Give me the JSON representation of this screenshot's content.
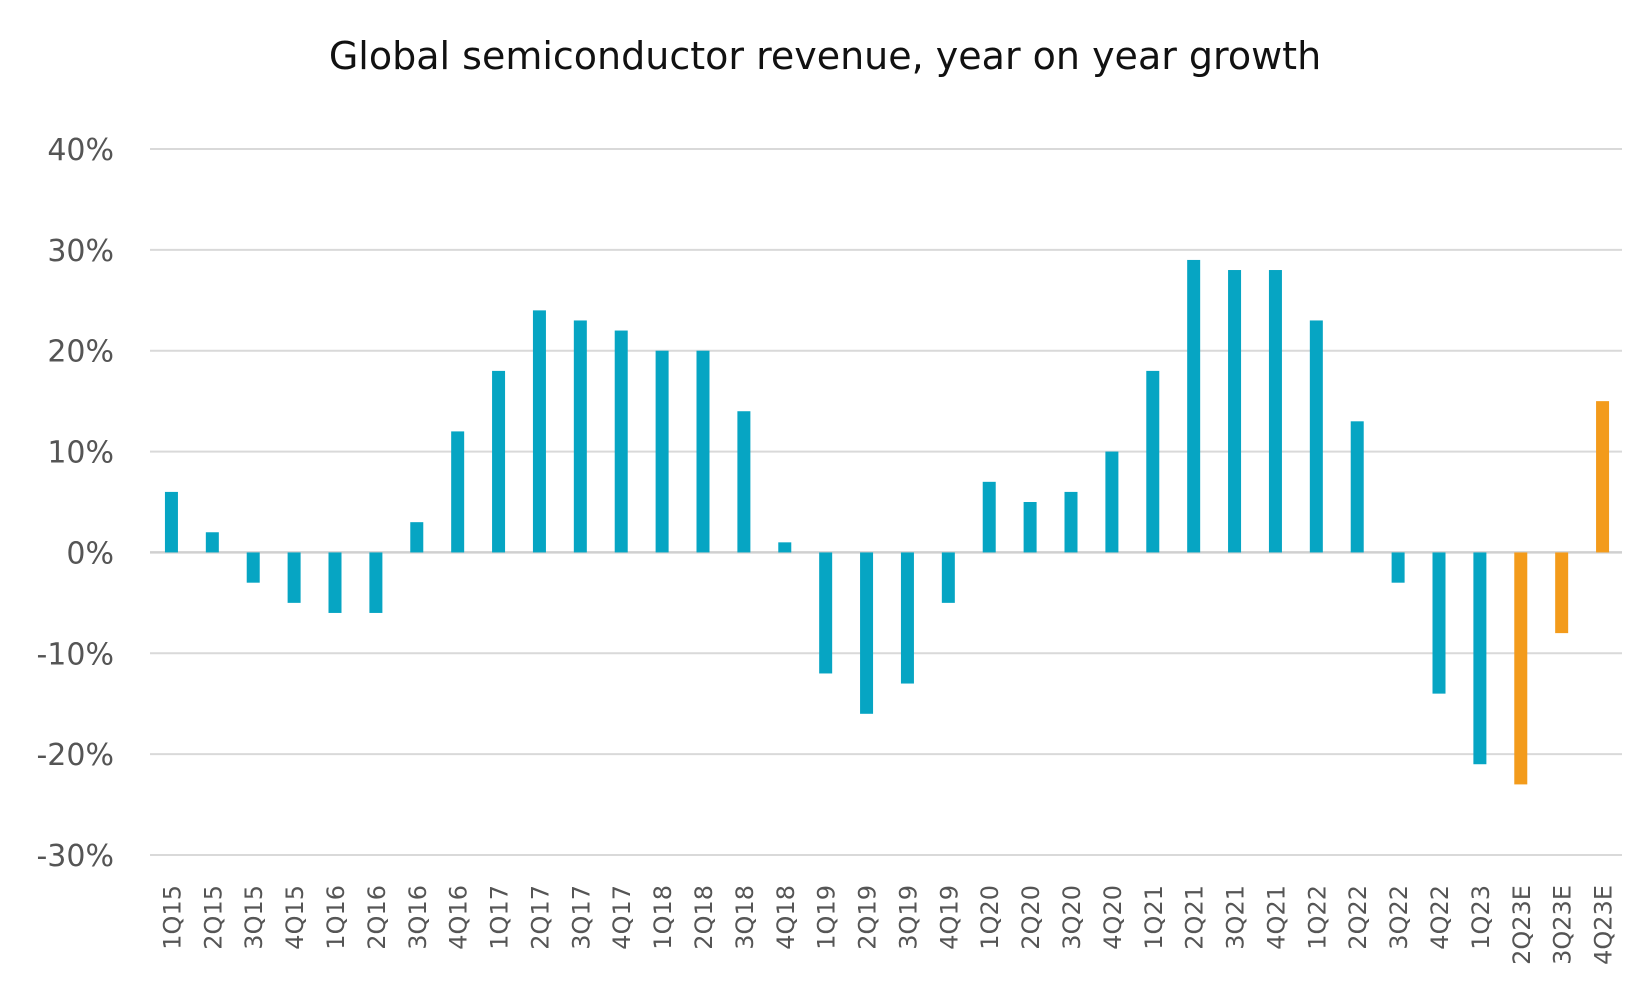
{
  "chart_data": {
    "type": "bar",
    "title": "Global semiconductor revenue, year on year growth",
    "xlabel": "",
    "ylabel": "",
    "ylim": [
      -30,
      40
    ],
    "yticks": [
      40,
      30,
      20,
      10,
      0,
      -10,
      -20,
      -30
    ],
    "ytick_labels": [
      "40%",
      "30%",
      "20%",
      "10%",
      "0%",
      "-10%",
      "-20%",
      "-30%"
    ],
    "grid": true,
    "legend": "none",
    "categories": [
      "1Q15",
      "2Q15",
      "3Q15",
      "4Q15",
      "1Q16",
      "2Q16",
      "3Q16",
      "4Q16",
      "1Q17",
      "2Q17",
      "3Q17",
      "4Q17",
      "1Q18",
      "2Q18",
      "3Q18",
      "4Q18",
      "1Q19",
      "2Q19",
      "3Q19",
      "4Q19",
      "1Q20",
      "2Q20",
      "3Q20",
      "4Q20",
      "1Q21",
      "2Q21",
      "3Q21",
      "4Q21",
      "1Q22",
      "2Q22",
      "3Q22",
      "4Q22",
      "1Q23",
      "2Q23E",
      "3Q23E",
      "4Q23E"
    ],
    "values": [
      6,
      2,
      -3,
      -5,
      -6,
      -6,
      3,
      12,
      18,
      24,
      23,
      22,
      20,
      20,
      14,
      1,
      -12,
      -16,
      -13,
      -5,
      7,
      5,
      6,
      10,
      18,
      29,
      28,
      28,
      23,
      13,
      -3,
      -14,
      -21,
      -23,
      -8,
      15
    ],
    "bar_kind": [
      "actual",
      "actual",
      "actual",
      "actual",
      "actual",
      "actual",
      "actual",
      "actual",
      "actual",
      "actual",
      "actual",
      "actual",
      "actual",
      "actual",
      "actual",
      "actual",
      "actual",
      "actual",
      "actual",
      "actual",
      "actual",
      "actual",
      "actual",
      "actual",
      "actual",
      "actual",
      "actual",
      "actual",
      "actual",
      "actual",
      "actual",
      "actual",
      "actual",
      "estimate",
      "estimate",
      "estimate"
    ],
    "colors": {
      "actual": "#06a5c3",
      "estimate": "#f39b1b",
      "grid": "#d9d9d9",
      "text": "#555555",
      "title": "#111111"
    }
  }
}
